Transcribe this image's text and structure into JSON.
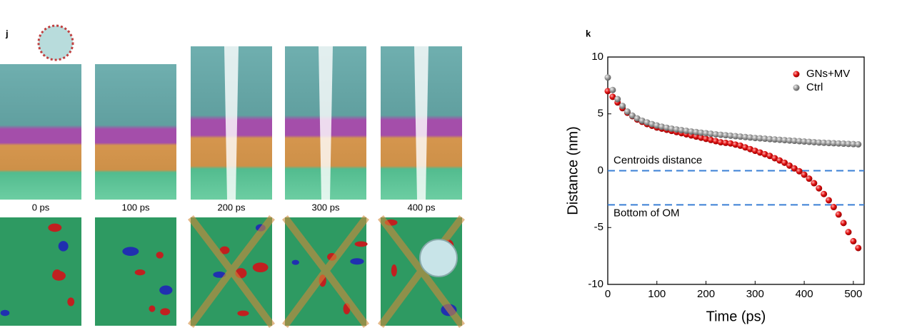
{
  "panel_labels": [
    "j",
    "k"
  ],
  "snapshot_labels": [
    "0 ps",
    "100 ps",
    "200 ps",
    "300 ps",
    "400 ps"
  ],
  "chart_data": {
    "type": "scatter",
    "x_label": "Time (ps)",
    "y_label": "Distance (nm)",
    "xlim": [
      0,
      522
    ],
    "ylim": [
      -10,
      10
    ],
    "xticks": [
      0,
      100,
      200,
      300,
      400,
      500
    ],
    "yticks": [
      -10,
      -5,
      0,
      5,
      10
    ],
    "legend": "upper right",
    "x": [
      0,
      10,
      20,
      30,
      40,
      50,
      60,
      70,
      80,
      90,
      100,
      110,
      120,
      130,
      140,
      150,
      160,
      170,
      180,
      190,
      200,
      210,
      220,
      230,
      240,
      250,
      260,
      270,
      280,
      290,
      300,
      310,
      320,
      330,
      340,
      350,
      360,
      370,
      380,
      390,
      400,
      410,
      420,
      430,
      440,
      450,
      460,
      470,
      480,
      490,
      500,
      510
    ],
    "series": [
      {
        "name": "GNs+MV",
        "color": "#e01010",
        "values": [
          7.0,
          6.5,
          6.0,
          5.5,
          5.1,
          4.8,
          4.5,
          4.3,
          4.1,
          3.95,
          3.8,
          3.7,
          3.6,
          3.5,
          3.4,
          3.3,
          3.2,
          3.1,
          3.0,
          2.9,
          2.8,
          2.7,
          2.6,
          2.5,
          2.45,
          2.4,
          2.3,
          2.2,
          2.05,
          1.9,
          1.75,
          1.6,
          1.45,
          1.3,
          1.1,
          0.9,
          0.7,
          0.45,
          0.2,
          -0.05,
          -0.35,
          -0.7,
          -1.1,
          -1.55,
          -2.05,
          -2.6,
          -3.2,
          -3.85,
          -4.6,
          -5.4,
          -6.2,
          -6.8
        ]
      },
      {
        "name": "Ctrl",
        "color": "#8c8c8c",
        "values": [
          8.2,
          7.1,
          6.3,
          5.7,
          5.2,
          4.85,
          4.6,
          4.4,
          4.25,
          4.1,
          3.98,
          3.87,
          3.78,
          3.7,
          3.63,
          3.57,
          3.51,
          3.45,
          3.4,
          3.35,
          3.3,
          3.25,
          3.2,
          3.16,
          3.12,
          3.08,
          3.04,
          3.0,
          2.96,
          2.92,
          2.88,
          2.85,
          2.82,
          2.78,
          2.75,
          2.72,
          2.69,
          2.66,
          2.63,
          2.6,
          2.57,
          2.54,
          2.51,
          2.48,
          2.46,
          2.44,
          2.42,
          2.4,
          2.38,
          2.36,
          2.34,
          2.32
        ]
      }
    ],
    "annotations": [
      {
        "text": "Centroids distance",
        "y": 0,
        "color": "#3a7fd5"
      },
      {
        "text": "Bottom of OM",
        "y": -3,
        "color": "#3a7fd5"
      }
    ]
  }
}
